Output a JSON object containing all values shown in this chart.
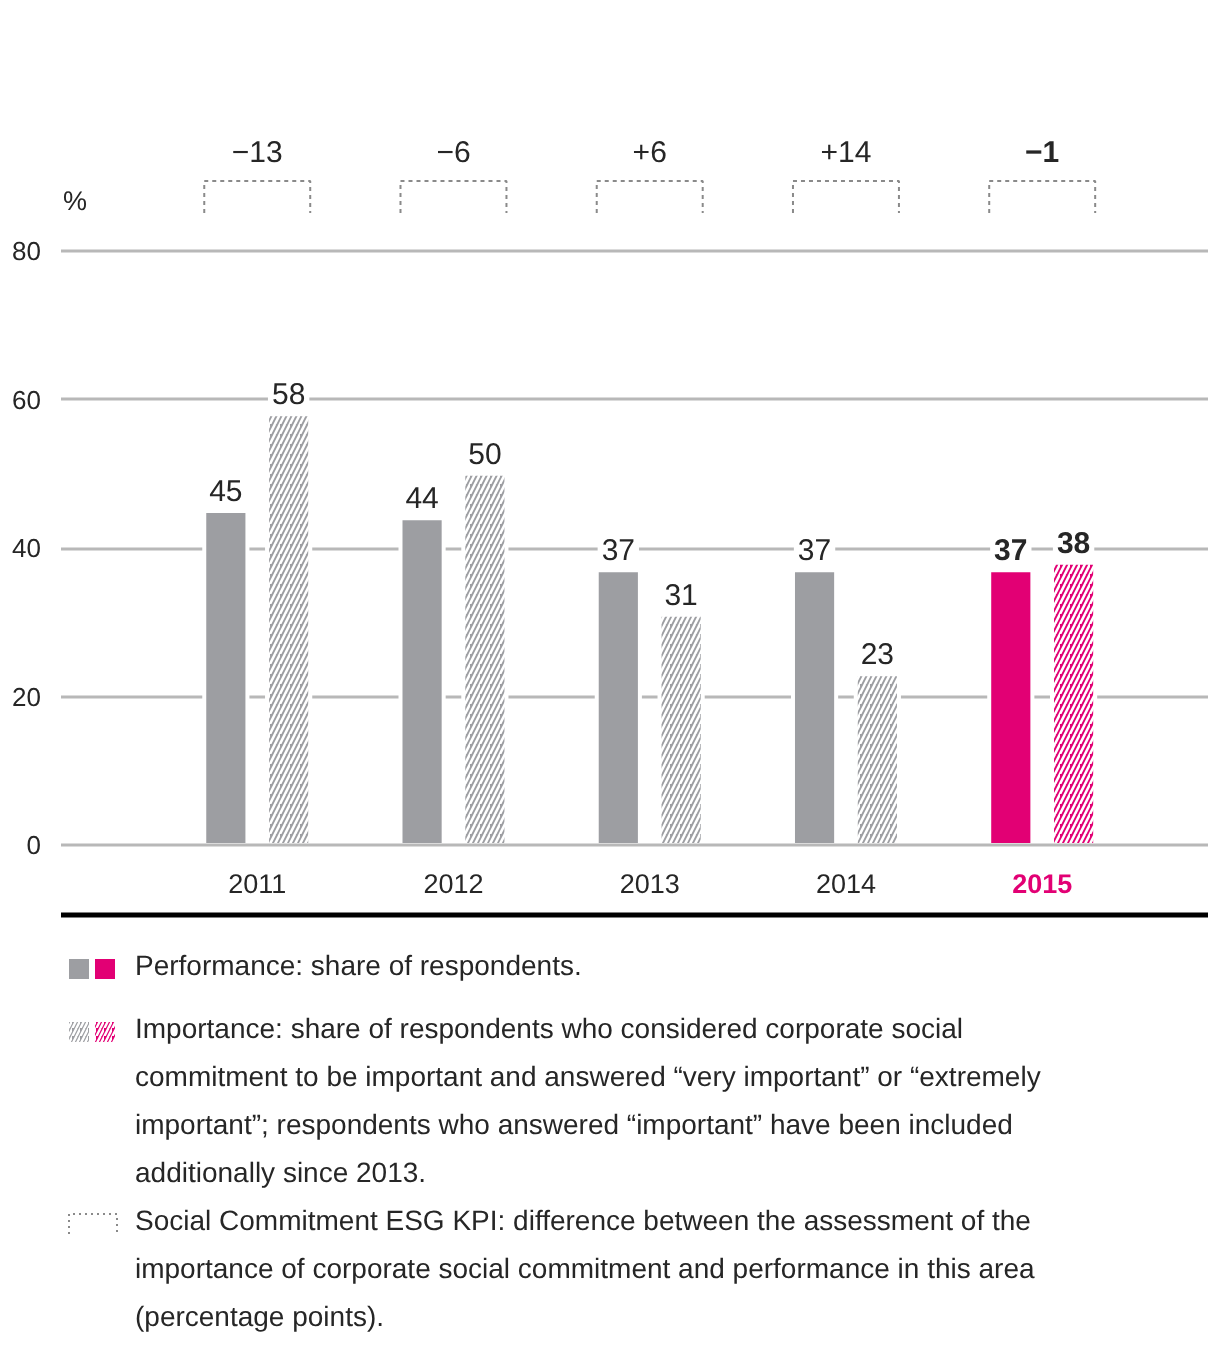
{
  "chart_data": {
    "type": "bar",
    "ylabel": "%",
    "categories": [
      "2011",
      "2012",
      "2013",
      "2014",
      "2015"
    ],
    "series": [
      {
        "name": "Performance: share of respondents.",
        "colors": [
          "#9d9ea2",
          "#9d9ea2",
          "#9d9ea2",
          "#9d9ea2",
          "#e20074"
        ],
        "values": [
          45,
          44,
          37,
          37,
          37
        ]
      },
      {
        "name": "Importance: share of respondents who considered corporate social commitment to be important and answered “very important” or “extremely important”; respondents who answered “important” have been included additionally since 2013.",
        "colors": [
          "#9d9ea2",
          "#9d9ea2",
          "#9d9ea2",
          "#9d9ea2",
          "#e20074"
        ],
        "values": [
          58,
          50,
          31,
          23,
          38
        ]
      }
    ],
    "ylim": [
      0,
      80
    ],
    "yticks": [
      0,
      20,
      40,
      60,
      80
    ],
    "grid": "y",
    "data_labels": true,
    "legend": "bottom",
    "annotations": [
      "−13",
      "−6",
      "+6",
      "+14",
      "−1",
      "Social Commitment ESG KPI: difference between the assessment of the importance of corporate social commitment and performance in this area (percentage points)."
    ]
  }
}
